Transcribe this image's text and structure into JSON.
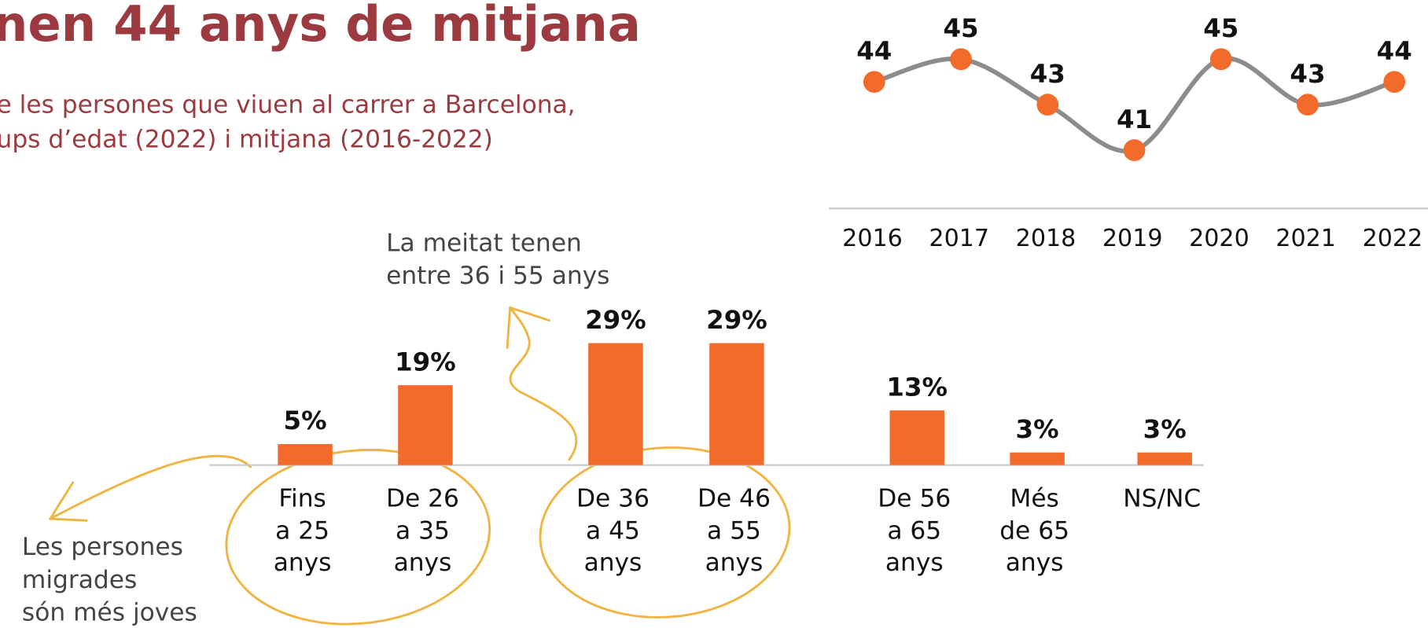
{
  "chart_data": [
    {
      "type": "bar",
      "title": "nen 44 anys de mitjana",
      "subtitle": [
        "e les persones que viuen al carrer a Barcelona,",
        "ups d’edat (2022) i mitjana (2016-2022)"
      ],
      "annotations": [
        "La meitat tenen\nentre 36 i 55 anys",
        "Les persones\nmigrades\nsón més joves"
      ],
      "categories": [
        "Fins\na 25\nanys",
        "De 26\na 35\nanys",
        "De 36\na 45\nanys",
        "De 46\na 55\nanys",
        "De 56\na 65\nanys",
        "Més\nde 65\nanys",
        "NS/NC"
      ],
      "values": [
        5,
        19,
        29,
        29,
        13,
        3,
        3
      ],
      "value_labels": [
        "5%",
        "19%",
        "29%",
        "29%",
        "13%",
        "3%",
        "3%"
      ],
      "color": "#f26b2a"
    },
    {
      "type": "line",
      "x": [
        2016,
        2017,
        2018,
        2019,
        2020,
        2021,
        2022
      ],
      "values": [
        44,
        45,
        43,
        41,
        45,
        43,
        44
      ],
      "line_color": "#8c8c8c",
      "color": "#f26b2a"
    }
  ]
}
